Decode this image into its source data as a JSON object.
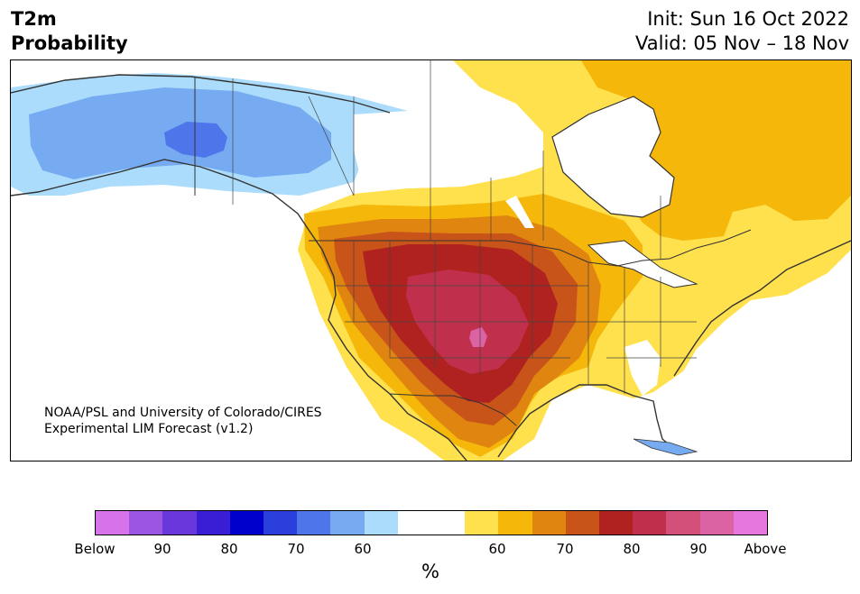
{
  "title": {
    "line1": "T2m",
    "line2": "Probability"
  },
  "dates": {
    "init": "Init: Sun 16 Oct 2022",
    "valid": "Valid: 05 Nov – 18 Nov"
  },
  "credit": {
    "line1": "NOAA/PSL and University of Colorado/CIRES",
    "line2": "Experimental LIM Forecast (v1.2)"
  },
  "colorbar": {
    "colors": [
      "#d672ea",
      "#9b55e0",
      "#6a37dc",
      "#3a1ed6",
      "#0000cd",
      "#2a3fdc",
      "#4f75ea",
      "#76abf2",
      "#abdcfb",
      "#ffffff",
      "#ffffff",
      "#ffe04d",
      "#f4b70a",
      "#e08510",
      "#c9541a",
      "#b0221f",
      "#c0304c",
      "#d2507a",
      "#db62a3",
      "#e677de"
    ],
    "labels": [
      "Below",
      "90",
      "80",
      "70",
      "60",
      "60",
      "70",
      "80",
      "90",
      "Above"
    ],
    "unit": "%"
  }
}
